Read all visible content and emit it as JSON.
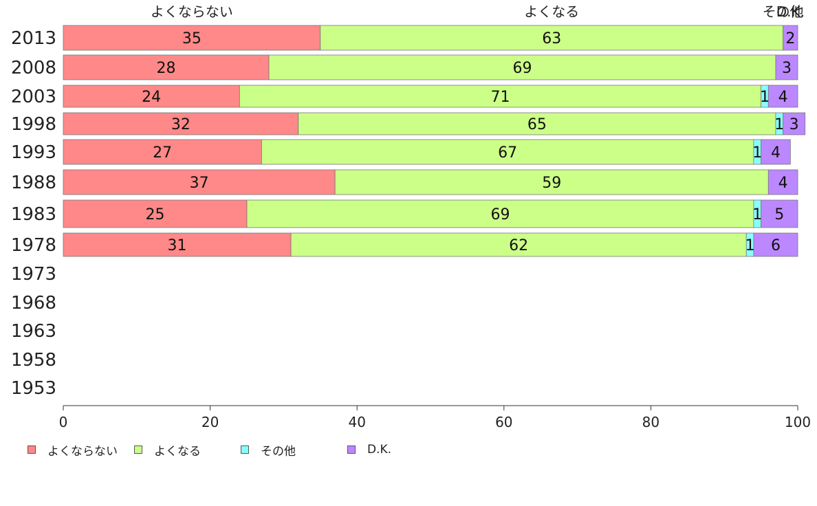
{
  "chart_data": {
    "type": "bar",
    "orientation": "horizontal",
    "stacked": true,
    "categories": [
      "2013",
      "2008",
      "2003",
      "1998",
      "1993",
      "1988",
      "1983",
      "1978",
      "1973",
      "1968",
      "1963",
      "1958",
      "1953"
    ],
    "series": [
      {
        "name": "よくならない",
        "color": "#ff8888",
        "values": [
          35,
          28,
          24,
          32,
          27,
          37,
          25,
          31,
          null,
          null,
          null,
          null,
          null
        ]
      },
      {
        "name": "よくなる",
        "color": "#ccff88",
        "values": [
          63,
          69,
          71,
          65,
          67,
          59,
          69,
          62,
          null,
          null,
          null,
          null,
          null
        ]
      },
      {
        "name": "その他",
        "color": "#88ffff",
        "values": [
          0,
          0,
          1,
          1,
          1,
          0,
          1,
          1,
          null,
          null,
          null,
          null,
          null
        ]
      },
      {
        "name": "D.K.",
        "color": "#bb88ff",
        "values": [
          2,
          3,
          4,
          3,
          4,
          4,
          5,
          6,
          null,
          null,
          null,
          null,
          null
        ]
      }
    ],
    "top_labels": [
      "よくならない",
      "よくなる",
      "その他",
      "D.K."
    ],
    "xlim": [
      0,
      100
    ],
    "x_ticks": [
      0,
      20,
      40,
      60,
      80,
      100
    ],
    "legend_position": "bottom-left",
    "grid": false
  }
}
